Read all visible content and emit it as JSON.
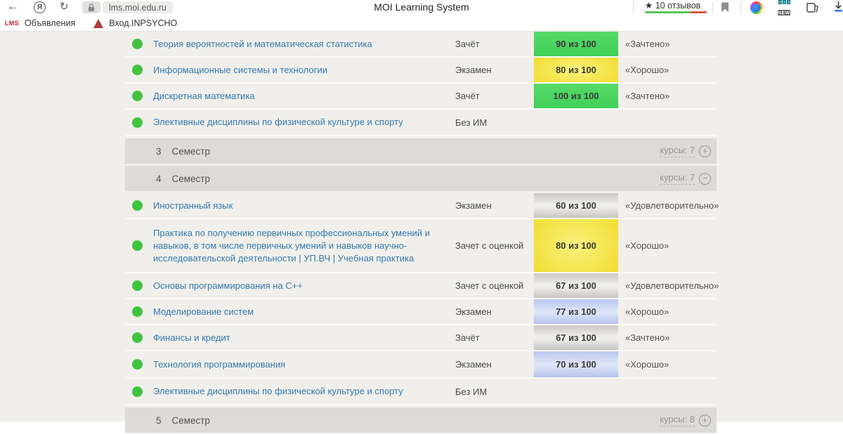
{
  "browser": {
    "url": "lms.moi.edu.ru",
    "page_title": "MOI Learning System",
    "rating": {
      "star": "★",
      "label": "10 отзывов"
    },
    "new_badge": "NEW",
    "bookmarks": [
      {
        "logo_text": "LMS",
        "label": "Объявления"
      },
      {
        "label": "Вход.INPSYCHO"
      }
    ]
  },
  "colors": {
    "page_bg": "#f0efeb",
    "semester_row_bg": "#dcdbd6",
    "course_link": "#3579ae",
    "status_dot_green": "#41c341",
    "badge_green": "#4bd55f",
    "badge_yellow": "#f2dc2b",
    "badge_gray": "#d9d8d5",
    "badge_blue": "#bdc9f0",
    "rating_bar_green": "#57c457",
    "rating_bar_red": "#e0544a",
    "lms_logo_red": "#cc2222"
  },
  "table": {
    "rows": [
      {
        "type": "course",
        "name": "Теория вероятностей и математическая статистика",
        "control": "Зачёт",
        "score": "90 из 100",
        "badge": "green",
        "grade": "«Зачтено»"
      },
      {
        "type": "course",
        "name": "Информационные системы и технологии",
        "control": "Экзамен",
        "score": "80 из 100",
        "badge": "yellow",
        "grade": "«Хорошо»"
      },
      {
        "type": "course",
        "name": "Дискретная математика",
        "control": "Зачёт",
        "score": "100 из 100",
        "badge": "green",
        "grade": "«Зачтено»"
      },
      {
        "type": "course",
        "name": "Элективные дисциплины по физической культуре и спорту",
        "control": "Без ИМ",
        "score": "",
        "badge": "none",
        "grade": "",
        "h": 38
      },
      {
        "type": "semester",
        "num": "3",
        "label": "Семестр",
        "link_label": "курсы:",
        "count": "7",
        "state": "plus"
      },
      {
        "type": "semester",
        "num": "4",
        "label": "Семестр",
        "link_label": "курсы:",
        "count": "7",
        "state": "minus"
      },
      {
        "type": "course",
        "name": "Иностранный язык",
        "control": "Экзамен",
        "score": "60 из 100",
        "badge": "gray",
        "grade": "«Удовлетворительно»"
      },
      {
        "type": "course",
        "name": "Практика по получению первичных профессиональных умений и навыков, в том числе первичных умений и навыков научно-исследовательской деятельности | УП.ВЧ | Учебная практика",
        "control": "Зачет с оценкой",
        "score": "80 из 100",
        "badge": "yellow",
        "grade": "«Хорошо»",
        "tall": true
      },
      {
        "type": "course",
        "name": "Основы программирования на C++",
        "control": "Зачет с оценкой",
        "score": "67 из 100",
        "badge": "gray",
        "grade": "«Удовлетворительно»"
      },
      {
        "type": "course",
        "name": "Моделирование систем",
        "control": "Экзамен",
        "score": "77 из 100",
        "badge": "blue",
        "grade": "«Хорошо»"
      },
      {
        "type": "course",
        "name": "Финансы и кредит",
        "control": "Зачёт",
        "score": "67 из 100",
        "badge": "gray",
        "grade": "«Зачтено»"
      },
      {
        "type": "course",
        "name": "Технология программирования",
        "control": "Экзамен",
        "score": "70 из 100",
        "badge": "blue",
        "grade": "«Хорошо»",
        "h": 39
      },
      {
        "type": "course",
        "name": "Элективные дисциплины по физической культуре и спорту",
        "control": "Без ИМ",
        "score": "",
        "badge": "none",
        "grade": "",
        "h": 38
      },
      {
        "type": "semester",
        "num": "5",
        "label": "Семестр",
        "link_label": "курсы:",
        "count": "8",
        "state": "plus"
      }
    ]
  }
}
